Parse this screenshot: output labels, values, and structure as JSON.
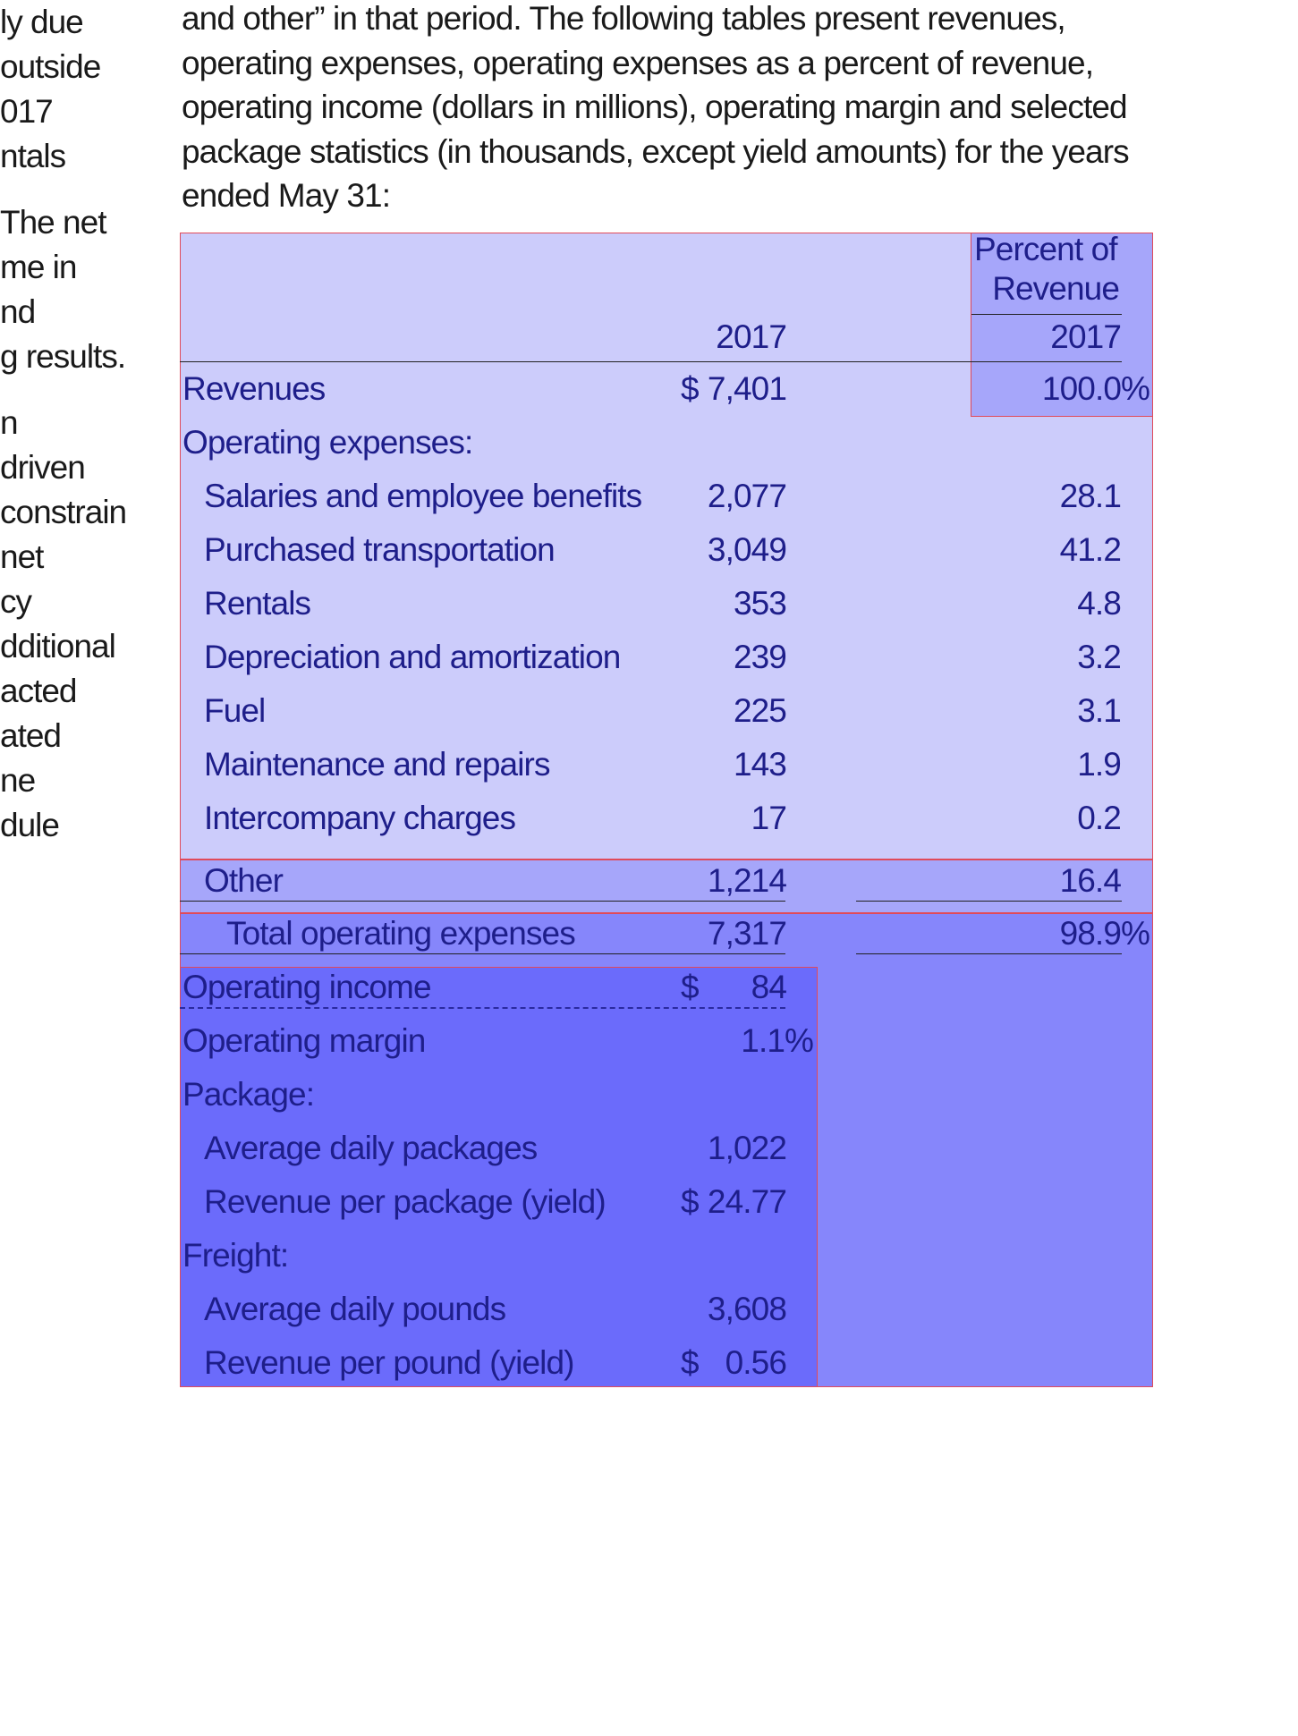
{
  "left_fragments": [
    "ly due",
    " outside",
    "017",
    "ntals",
    "",
    "The net",
    "me in",
    "nd",
    "g results.",
    "",
    "n",
    " driven",
    " constrain",
    "net",
    "cy",
    "dditional",
    "acted",
    "ated",
    "ne",
    "dule"
  ],
  "intro": {
    "lines": [
      "and other” in that period. The following tables present revenues,",
      "operating expenses, operating expenses as a percent of revenue,",
      "operating income (dollars in millions), operating margin and selected",
      "package statistics (in thousands, except yield amounts) for the years",
      "ended May 31:"
    ]
  },
  "table": {
    "header": {
      "year": "2017",
      "percent_title_1": "Percent of",
      "percent_title_2": "Revenue",
      "percent_year": "2017"
    },
    "revenues": {
      "label": "Revenues",
      "currency": "$",
      "value": "7,401",
      "pct": "100.0%"
    },
    "opex_header": "Operating expenses:",
    "opex": [
      {
        "label": "Salaries and employee benefits",
        "value": "2,077",
        "pct": "28.1"
      },
      {
        "label": "Purchased transportation",
        "value": "3,049",
        "pct": "41.2"
      },
      {
        "label": "Rentals",
        "value": "353",
        "pct": "4.8"
      },
      {
        "label": "Depreciation and amortization",
        "value": "239",
        "pct": "3.2"
      },
      {
        "label": "Fuel",
        "value": "225",
        "pct": "3.1"
      },
      {
        "label": "Maintenance and repairs",
        "value": "143",
        "pct": "1.9"
      },
      {
        "label": "Intercompany charges",
        "value": "17",
        "pct": "0.2"
      },
      {
        "label": "Other",
        "value": "1,214",
        "pct": "16.4"
      }
    ],
    "total": {
      "label": "Total operating expenses",
      "value": "7,317",
      "pct": "98.9%"
    },
    "operating_income": {
      "label": "Operating income",
      "currency": "$",
      "value": "84"
    },
    "operating_margin": {
      "label": "Operating margin",
      "value": "1.1%"
    },
    "package_header": "Package:",
    "package": [
      {
        "label": "Average daily packages",
        "currency": "",
        "value": "1,022"
      },
      {
        "label": "Revenue per package (yield)",
        "currency": "$",
        "value": "24.77"
      }
    ],
    "freight_header": "Freight:",
    "freight": [
      {
        "label": "Average daily pounds",
        "currency": "",
        "value": "3,608"
      },
      {
        "label": "Revenue per pound (yield)",
        "currency": "$",
        "value": "0.56"
      }
    ]
  },
  "colors": {
    "region_light": "#ccccfb",
    "region_mid": "#a6a6fa",
    "region_blue": "#8686fb",
    "region_dark": "#6b6bfb",
    "outline": "#e04a5a",
    "text": "#1e1e8a"
  }
}
